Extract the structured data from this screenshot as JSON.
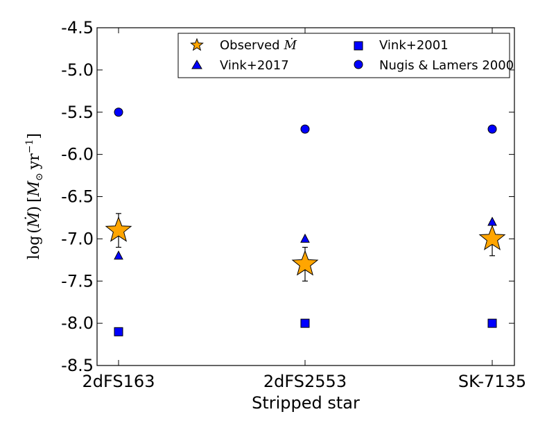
{
  "chart_data": {
    "type": "scatter",
    "title": "",
    "xlabel": "Stripped star",
    "ylabel": {
      "lead": "log",
      "open": "(",
      "mdot": "Ṁ",
      "close": ")",
      "bracket_open": "[",
      "msun": "M",
      "sun_symbol": "⊙",
      "yr": "yr",
      "exponent": "−1",
      "bracket_close": "]"
    },
    "categories": [
      "2dFS163",
      "2dFS2553",
      "SK-7135"
    ],
    "ylim": [
      -8.5,
      -4.5
    ],
    "yticks": [
      "-4.5",
      "-5.0",
      "-5.5",
      "-6.0",
      "-6.5",
      "-7.0",
      "-7.5",
      "-8.0",
      "-8.5"
    ],
    "ytick_values": [
      -4.5,
      -5.0,
      -5.5,
      -6.0,
      -6.5,
      -7.0,
      -7.5,
      -8.0,
      -8.5
    ],
    "series": [
      {
        "name": "Observed",
        "legend_math": "Ṁ",
        "marker": "star",
        "color": "#FFA500",
        "values": [
          -6.9,
          -7.3,
          -7.0
        ],
        "errors": [
          0.2,
          0.2,
          0.2
        ]
      },
      {
        "name": "Vink+2017",
        "marker": "triangle",
        "color": "#0000FF",
        "values": [
          -7.2,
          -7.0,
          -6.8
        ]
      },
      {
        "name": "Vink+2001",
        "marker": "square",
        "color": "#0000FF",
        "values": [
          -8.1,
          -8.0,
          -8.0
        ]
      },
      {
        "name": "Nugis & Lamers 2000",
        "marker": "circle",
        "color": "#0000FF",
        "values": [
          -5.5,
          -5.7,
          -5.7
        ]
      }
    ],
    "legend_position": "top-right"
  }
}
